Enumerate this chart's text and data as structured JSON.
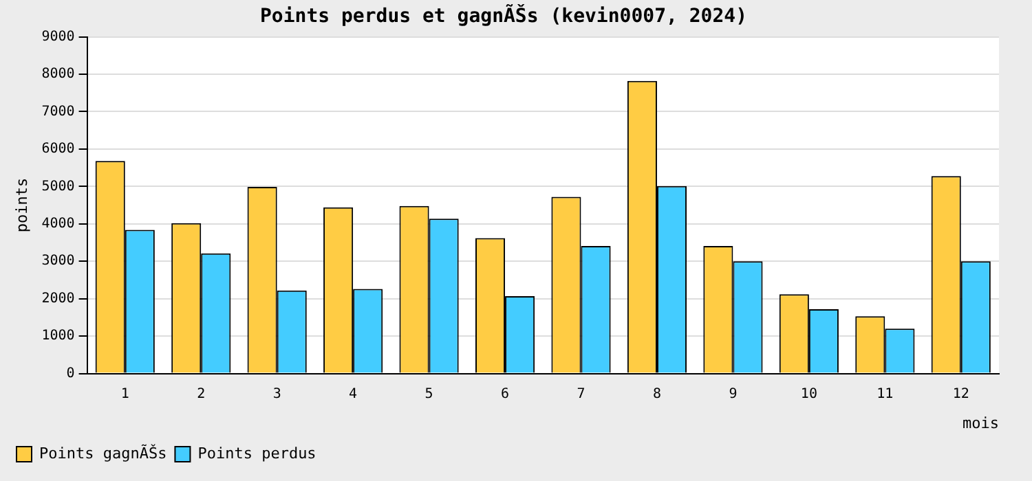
{
  "chart_data": {
    "type": "bar",
    "title": "Points perdus et gagnÃŠs (kevin0007, 2024)",
    "xlabel": "mois",
    "ylabel": "points",
    "categories": [
      "1",
      "2",
      "3",
      "4",
      "5",
      "6",
      "7",
      "8",
      "9",
      "10",
      "11",
      "12"
    ],
    "series": [
      {
        "name": "Points gagnÃŠs",
        "color": "#ffcc44",
        "values": [
          5680,
          4020,
          4990,
          4440,
          4480,
          3620,
          4720,
          7820,
          3410,
          2120,
          1530,
          5280
        ]
      },
      {
        "name": "Points perdus",
        "color": "#44ccff",
        "values": [
          3840,
          3210,
          2220,
          2260,
          4140,
          2070,
          3410,
          5010,
          3000,
          1720,
          1200,
          3000
        ]
      }
    ],
    "ylim": [
      0,
      9000
    ],
    "yticks": [
      0,
      1000,
      2000,
      3000,
      4000,
      5000,
      6000,
      7000,
      8000,
      9000
    ],
    "grid": "y",
    "legend": "bottom left"
  }
}
